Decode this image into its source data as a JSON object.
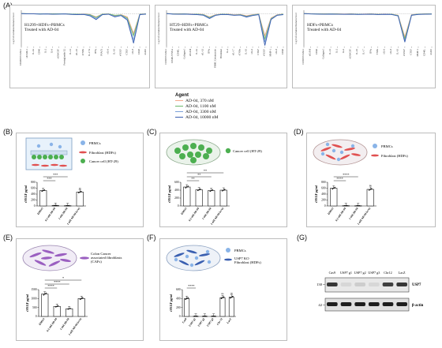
{
  "figure_label": "(A)",
  "panel_a": {
    "charts": [
      {
        "letter": "",
        "caption_line1": "H1299+HDFs+PBMCs",
        "caption_line2": "Treated with AD-04",
        "ylabel": "Log10 of normalized biomarker level",
        "categories": [
          "CD208/VCAM-1",
          "sICAM-1",
          "IL-1α",
          "CD40",
          "IL-2",
          "IL-6",
          "sGM-CSF",
          "Prostaglandin E2",
          "IL-12",
          "sIL-10",
          "sTNFα",
          "IL-17A",
          "IFNγ",
          "PSA(?)",
          "sIL-6",
          "IL-10",
          "sVEGF",
          "CTGF",
          "sIL-8",
          "CD20",
          "sGRO"
        ],
        "series_values": [
          [
            0.0,
            -0.02,
            -0.01,
            -0.03,
            -0.02,
            -0.04,
            -0.03,
            -0.02,
            -0.05,
            -0.06,
            -0.04,
            -0.08,
            -0.3,
            -0.05,
            -0.03,
            -0.2,
            -0.1,
            -0.3,
            -1.8,
            -0.05,
            -0.02
          ],
          [
            0.0,
            -0.01,
            -0.02,
            -0.02,
            -0.03,
            -0.03,
            -0.02,
            -0.03,
            -0.04,
            -0.05,
            -0.05,
            -0.1,
            -0.35,
            -0.06,
            -0.04,
            -0.15,
            -0.12,
            -0.4,
            -2.0,
            -0.06,
            -0.03
          ],
          [
            0.0,
            -0.02,
            -0.02,
            -0.04,
            -0.03,
            -0.05,
            -0.04,
            -0.03,
            -0.06,
            -0.08,
            -0.06,
            -0.15,
            -0.45,
            -0.08,
            -0.05,
            -0.25,
            -0.15,
            -0.5,
            -2.4,
            -0.08,
            -0.04
          ],
          [
            0.0,
            -0.03,
            -0.03,
            -0.05,
            -0.04,
            -0.06,
            -0.05,
            -0.04,
            -0.08,
            -0.1,
            -0.08,
            -0.2,
            -0.55,
            -0.1,
            -0.06,
            -0.3,
            -0.18,
            -0.6,
            -2.7,
            -0.1,
            -0.05
          ]
        ]
      },
      {
        "letter": "",
        "caption_line1": "HT29+HDFs+PBMCs",
        "caption_line2": "Treated with AD-04",
        "ylabel": "Log10 of normalized biomarker level",
        "categories": [
          "CD38/VCAM-1",
          "CD40L/TNF-α",
          "CD40L",
          "Collagen I",
          "sICAM",
          "IL-1α",
          "sIL-1β",
          "IFNγ",
          "PBMC Cytotoxicity",
          "Fibroblast",
          "IL-2",
          "sIL-17",
          "sTNFα",
          "IL-10",
          "sIL-6",
          "CTGF",
          "sVEGF",
          "MMP-1",
          "sIL-8",
          "CD40"
        ],
        "series_values": [
          [
            0.0,
            -0.02,
            -0.03,
            -0.02,
            -0.04,
            -0.05,
            -0.08,
            -0.3,
            -0.1,
            -0.05,
            -0.06,
            -0.1,
            -0.08,
            -0.2,
            -0.1,
            -0.05,
            -2.0,
            -0.4,
            -0.1,
            -0.05
          ],
          [
            0.0,
            -0.03,
            -0.04,
            -0.03,
            -0.05,
            -0.06,
            -0.1,
            -0.35,
            -0.12,
            -0.06,
            -0.07,
            -0.12,
            -0.1,
            -0.25,
            -0.12,
            -0.06,
            -2.3,
            -0.45,
            -0.12,
            -0.06
          ],
          [
            0.0,
            -0.04,
            -0.05,
            -0.04,
            -0.06,
            -0.08,
            -0.12,
            -0.4,
            -0.14,
            -0.07,
            -0.08,
            -0.14,
            -0.12,
            -0.28,
            -0.15,
            -0.08,
            -2.6,
            -0.5,
            -0.14,
            -0.08
          ],
          [
            0.0,
            -0.05,
            -0.06,
            -0.05,
            -0.08,
            -0.1,
            -0.15,
            -0.45,
            -0.16,
            -0.08,
            -0.1,
            -0.16,
            -0.14,
            -0.32,
            -0.18,
            -0.1,
            -2.9,
            -0.55,
            -0.16,
            -0.1
          ]
        ]
      },
      {
        "letter": "",
        "caption_line1": "HDFs+PBMCs",
        "caption_line2": "Treated with AD-04",
        "ylabel": "Log10 of normalized biomarker level",
        "categories": [
          "CD38/VCAM-1",
          "sICAM",
          "CD40",
          "Collagen I",
          "IL-1β",
          "IL-2",
          "IL-6",
          "sGM-CSF",
          "IL-10",
          "IL-17",
          "IFNγ",
          "TNFα",
          "sIL-6",
          "sIL-8",
          "IL-10",
          "sVEGF",
          "CTGF",
          "MMP-1",
          "CD40L",
          "sGRO"
        ],
        "series_values": [
          [
            0.0,
            -0.01,
            -0.02,
            -0.03,
            -0.02,
            -0.03,
            -0.04,
            -0.03,
            -0.05,
            -0.04,
            -0.03,
            -0.06,
            -0.04,
            -0.05,
            -0.15,
            -2.1,
            -0.1,
            -0.05,
            -0.03,
            -0.02
          ],
          [
            0.0,
            -0.02,
            -0.03,
            -0.04,
            -0.03,
            -0.04,
            -0.05,
            -0.04,
            -0.06,
            -0.05,
            -0.04,
            -0.07,
            -0.05,
            -0.06,
            -0.18,
            -2.3,
            -0.12,
            -0.06,
            -0.04,
            -0.03
          ],
          [
            0.0,
            -0.03,
            -0.04,
            -0.05,
            -0.04,
            -0.05,
            -0.06,
            -0.05,
            -0.07,
            -0.06,
            -0.05,
            -0.08,
            -0.06,
            -0.07,
            -0.2,
            -2.5,
            -0.14,
            -0.07,
            -0.05,
            -0.04
          ],
          [
            0.0,
            -0.04,
            -0.05,
            -0.06,
            -0.05,
            -0.06,
            -0.07,
            -0.06,
            -0.08,
            -0.07,
            -0.06,
            -0.09,
            -0.07,
            -0.08,
            -0.22,
            -2.6,
            -0.16,
            -0.08,
            -0.06,
            -0.05
          ]
        ]
      }
    ],
    "ylim": [
      -3,
      0.3
    ]
  },
  "agent_legend": {
    "title": "Agent",
    "items": [
      {
        "label": "AD-04, 370 nM",
        "color": "#f2a88a"
      },
      {
        "label": "AD-04, 1100 nM",
        "color": "#6ab86a"
      },
      {
        "label": "AD-04, 3300 nM",
        "color": "#7aa0d8"
      },
      {
        "label": "AD-04, 10000 nM",
        "color": "#3a5fb0"
      }
    ]
  },
  "panel_b": {
    "letter": "(B)",
    "legend": [
      "PBMCs",
      "Fibroblast (HDFs)",
      "Cancer cell (HT-29)"
    ],
    "ylabel": "sVEGF pg/ml",
    "categories": [
      "DMSO",
      "0.1 nM AD-04",
      "1 nM AD-04",
      "1 nM AD-04 (w/o)"
    ],
    "values": [
      520,
      15,
      10,
      470
    ],
    "ylim": [
      0,
      800
    ],
    "yticks": [
      "0",
      "200",
      "400",
      "600",
      "800"
    ],
    "sig": [
      "***",
      "***"
    ],
    "sig_ns": "ns"
  },
  "panel_c": {
    "letter": "(C)",
    "legend": [
      "Cancer cell (HT-29)"
    ],
    "ylabel": "sVEGF pg/ml",
    "categories": [
      "DMSO",
      "0.1 nM AD-04",
      "1 nM AD-04",
      "1 nM AD-04 (w/o)"
    ],
    "values": [
      480,
      410,
      390,
      400
    ],
    "ylim": [
      0,
      600
    ],
    "yticks": [
      "0",
      "200",
      "400",
      "600"
    ],
    "sig": [
      "**",
      "**",
      "**"
    ]
  },
  "panel_d": {
    "letter": "(D)",
    "legend": [
      "PBMCs",
      "Fibroblast (HDFs)"
    ],
    "ylabel": "sVEGF pg/ml",
    "categories": [
      "DMSO",
      "0.1 nM AD-04",
      "1 nM AD-04",
      "1 nM AD-04 (w/o)"
    ],
    "values": [
      600,
      10,
      8,
      560
    ],
    "ylim": [
      0,
      800
    ],
    "yticks": [
      "0",
      "200",
      "400",
      "600",
      "800"
    ],
    "sig": [
      "****",
      "****"
    ],
    "sig_ns": "ns"
  },
  "panel_e": {
    "letter": "(E)",
    "legend": [
      "Colon Cancer associated fibroblasts (CAFs)"
    ],
    "ylabel": "sVEGF pg/ml",
    "categories": [
      "DMSO",
      "0.1 nM AD-04",
      "1 nM AD-04",
      "1 nM AD-04 (w/o)"
    ],
    "values": [
      1250,
      560,
      430,
      1000
    ],
    "ylim": [
      0,
      1500
    ],
    "yticks": [
      "0",
      "500",
      "1000",
      "1500"
    ],
    "sig": [
      "****",
      "****",
      "*"
    ]
  },
  "panel_f": {
    "letter": "(F)",
    "legend": [
      "PBMCs",
      "USP7 KO Fibroblast (HDFs)"
    ],
    "ylabel": "sVEGF pg/ml",
    "categories": [
      "Cas9",
      "USP7 g1",
      "USP7 g2",
      "USP7 g3",
      "Chr 12",
      "LacZ"
    ],
    "values": [
      400,
      5,
      5,
      5,
      420,
      430
    ],
    "ylim": [
      0,
      600
    ],
    "yticks": [
      "0",
      "200",
      "400",
      "600"
    ],
    "sig": [
      "****"
    ],
    "sig_ns": "ns"
  },
  "panel_g": {
    "letter": "(G)",
    "lanes": [
      "Cas9",
      "USP7 g1",
      "USP7 g2",
      "USP7 g3",
      "Chr12",
      "LacZ"
    ],
    "markers": [
      "130",
      "42"
    ],
    "bands": [
      "USP7",
      "β-actin"
    ],
    "usp7_intensity": [
      0.9,
      0.1,
      0.15,
      0.1,
      0.85,
      0.9
    ]
  },
  "colors": {
    "bar_fill": "#ffffff",
    "bar_stroke": "#111111",
    "dish_green": "#4caf50",
    "cell_blue": "#8ab4e8",
    "fibro_red": "#e05050",
    "caf_purple": "#9a5fc0"
  }
}
